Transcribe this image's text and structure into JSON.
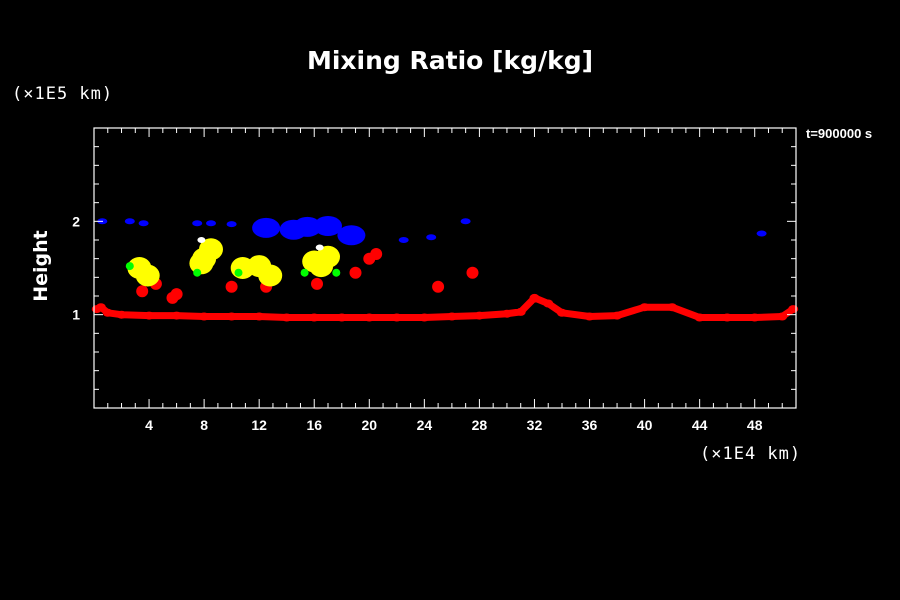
{
  "title": "Mixing Ratio [kg/kg]",
  "time_label": "t=900000 s",
  "y_unit_label": "(×1E5 km)",
  "x_unit_label": "(×1E4 km)",
  "colors": {
    "background": "#000000",
    "axis": "#ffffff"
  },
  "chart_data": {
    "type": "heatmap",
    "title": "Mixing Ratio [kg/kg]",
    "ylabel": "Height",
    "xlabel": "",
    "xlim": [
      0,
      51
    ],
    "ylim": [
      0,
      3
    ],
    "x_ticks": [
      4,
      8,
      12,
      16,
      20,
      24,
      28,
      32,
      36,
      40,
      44,
      48
    ],
    "x_tick_labels": [
      "4",
      "8",
      "12",
      "16",
      "20",
      "24",
      "28",
      "32",
      "36",
      "40",
      "44",
      "48"
    ],
    "y_ticks": [
      1,
      2
    ],
    "y_tick_labels": [
      "1",
      "2"
    ],
    "grid": false,
    "regions": [
      {
        "category": "red",
        "color": "#ff0000",
        "points": [
          [
            0.2,
            1.06
          ],
          [
            0.5,
            1.08
          ],
          [
            1.0,
            1.02
          ],
          [
            2,
            1.0
          ],
          [
            4,
            0.99
          ],
          [
            6,
            0.99
          ],
          [
            8,
            0.98
          ],
          [
            10,
            0.98
          ],
          [
            12,
            0.98
          ],
          [
            14,
            0.97
          ],
          [
            16,
            0.97
          ],
          [
            18,
            0.97
          ],
          [
            20,
            0.97
          ],
          [
            22,
            0.97
          ],
          [
            24,
            0.97
          ],
          [
            26,
            0.98
          ],
          [
            28,
            0.99
          ],
          [
            30,
            1.01
          ],
          [
            31,
            1.03
          ],
          [
            32,
            1.18
          ],
          [
            33,
            1.12
          ],
          [
            34,
            1.02
          ],
          [
            36,
            0.98
          ],
          [
            38,
            0.99
          ],
          [
            40,
            1.08
          ],
          [
            42,
            1.08
          ],
          [
            44,
            0.97
          ],
          [
            46,
            0.97
          ],
          [
            48,
            0.97
          ],
          [
            50,
            0.98
          ],
          [
            50.8,
            1.06
          ]
        ]
      },
      {
        "category": "red-scattered",
        "color": "#ff0000",
        "points": [
          [
            3.5,
            1.25
          ],
          [
            4.5,
            1.33
          ],
          [
            5.7,
            1.18
          ],
          [
            6,
            1.22
          ],
          [
            10,
            1.3
          ],
          [
            12.5,
            1.3
          ],
          [
            16.2,
            1.33
          ],
          [
            19,
            1.45
          ],
          [
            20,
            1.6
          ],
          [
            20.5,
            1.65
          ],
          [
            25,
            1.3
          ],
          [
            27.5,
            1.45
          ]
        ]
      },
      {
        "category": "yellow",
        "color": "#ffff00",
        "points": [
          [
            3.3,
            1.5
          ],
          [
            3.9,
            1.42
          ],
          [
            8,
            1.6
          ],
          [
            8.5,
            1.7
          ],
          [
            7.8,
            1.55
          ],
          [
            10.8,
            1.5
          ],
          [
            12,
            1.52
          ],
          [
            12.8,
            1.42
          ],
          [
            16,
            1.57
          ],
          [
            16.5,
            1.52
          ],
          [
            17,
            1.62
          ]
        ]
      },
      {
        "category": "green",
        "color": "#00ff00",
        "points": [
          [
            2.6,
            1.52
          ],
          [
            7.5,
            1.45
          ],
          [
            10.5,
            1.45
          ],
          [
            15.3,
            1.45
          ],
          [
            17.6,
            1.45
          ]
        ]
      },
      {
        "category": "white",
        "color": "#ffffff",
        "points": [
          [
            7.8,
            1.8
          ],
          [
            16.4,
            1.72
          ]
        ]
      },
      {
        "category": "blue",
        "color": "#0000ff",
        "points": [
          [
            0.6,
            2.0
          ],
          [
            2.6,
            2.0
          ],
          [
            3.6,
            1.98
          ],
          [
            7.5,
            1.98
          ],
          [
            8.5,
            1.98
          ],
          [
            10,
            1.97
          ],
          [
            12.5,
            1.93
          ],
          [
            14.5,
            1.91
          ],
          [
            15.5,
            1.94
          ],
          [
            17,
            1.95
          ],
          [
            18.7,
            1.85
          ],
          [
            22.5,
            1.8
          ],
          [
            24.5,
            1.83
          ],
          [
            27,
            2.0
          ],
          [
            48.5,
            1.87
          ]
        ]
      }
    ]
  }
}
